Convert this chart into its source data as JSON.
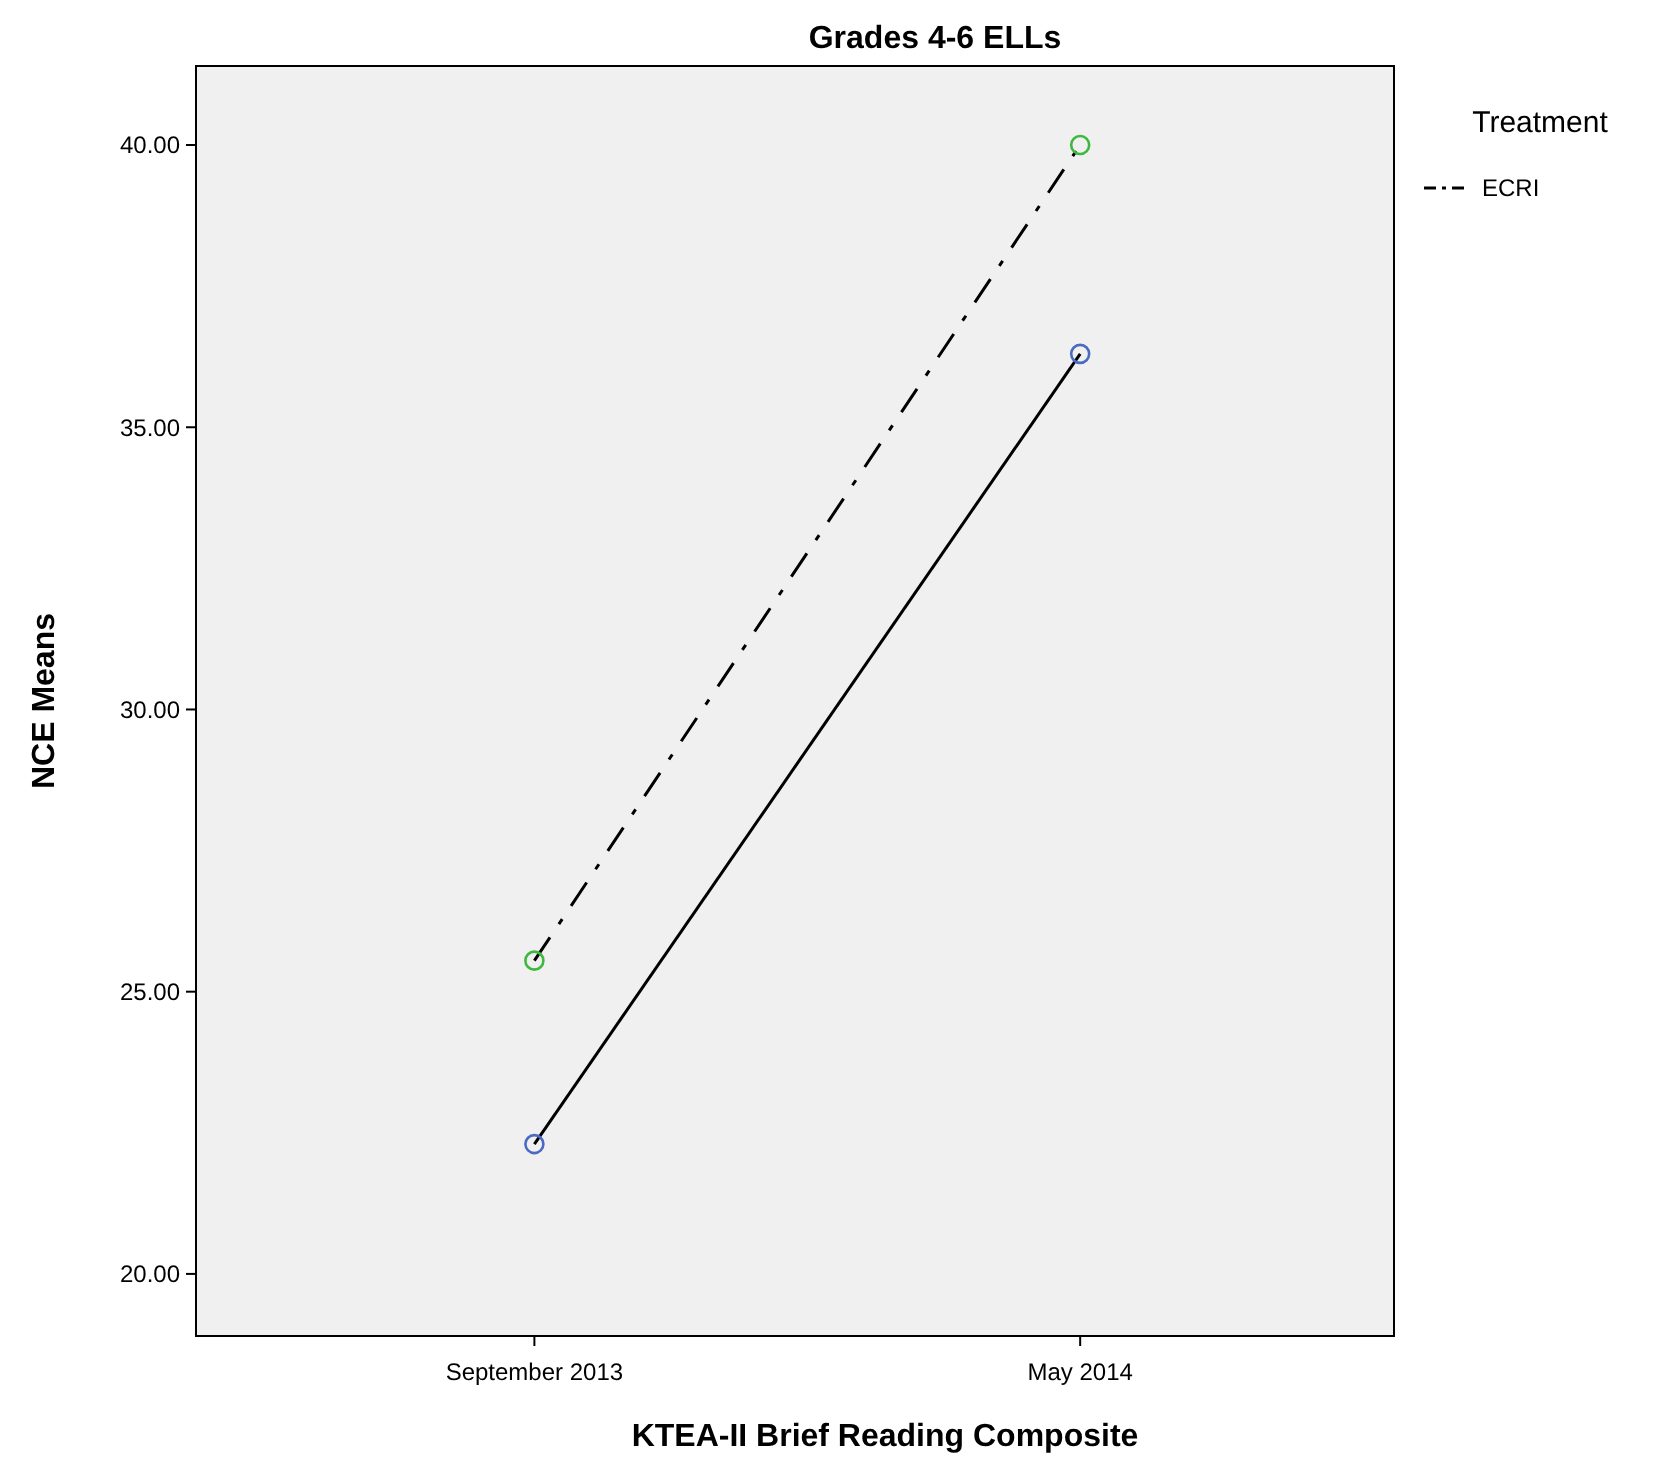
{
  "chart_data": {
    "type": "line",
    "title": "Grades 4-6 ELLs",
    "xlabel": "KTEA-II Brief Reading Composite",
    "ylabel": "NCE Means",
    "legend_title": "Treatment",
    "categories": [
      "September 2013",
      "May 2014"
    ],
    "series": [
      {
        "color": "#000000",
        "colors": [
          "#4a6bc0",
          "#4a6bc0"
        ],
        "line_style": "solid",
        "values": [
          22.3,
          36.3
        ]
      },
      {
        "name": "ECRI",
        "color": "#000000",
        "colors": [
          "#3fb83f",
          "#3fb83f"
        ],
        "line_style": "dashed",
        "values": [
          25.55,
          40.0
        ]
      }
    ],
    "ylim": [
      18.9,
      41.4
    ],
    "yticks": [
      {
        "value": 20,
        "label": "20.00"
      },
      {
        "value": 25,
        "label": "25.00"
      },
      {
        "value": 30,
        "label": "30.00"
      },
      {
        "value": 35,
        "label": "35.00"
      },
      {
        "value": 40,
        "label": "40.00"
      }
    ],
    "grid": false,
    "legend": "top right",
    "marker": "circle"
  }
}
